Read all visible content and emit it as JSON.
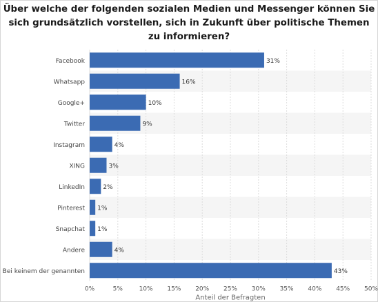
{
  "chart_data": {
    "type": "bar",
    "orientation": "horizontal",
    "title_lines": [
      "Über welche der folgenden sozialen Medien und Messenger können Sie",
      "sich grundsätzlich vorstellen, sich in Zukunft über politische Themen",
      "zu informieren?"
    ],
    "categories": [
      "Facebook",
      "Whatsapp",
      "Google+",
      "Twitter",
      "Instagram",
      "XING",
      "LinkedIn",
      "Pinterest",
      "Snapchat",
      "Andere",
      "Bei keinem der genannten"
    ],
    "values": [
      31,
      16,
      10,
      9,
      4,
      3,
      2,
      1,
      1,
      4,
      43
    ],
    "value_labels": [
      "31%",
      "16%",
      "10%",
      "9%",
      "4%",
      "3%",
      "2%",
      "1%",
      "1%",
      "4%",
      "43%"
    ],
    "xlabel": "Anteil der Befragten",
    "xlim": [
      0,
      50
    ],
    "xticks": [
      0,
      5,
      10,
      15,
      20,
      25,
      30,
      35,
      40,
      45,
      50
    ],
    "xtick_labels": [
      "0%",
      "5%",
      "10%",
      "15%",
      "20%",
      "25%",
      "30%",
      "35%",
      "40%",
      "45%",
      "50%"
    ],
    "grid": true,
    "bar_color": "#3b6bb3"
  }
}
